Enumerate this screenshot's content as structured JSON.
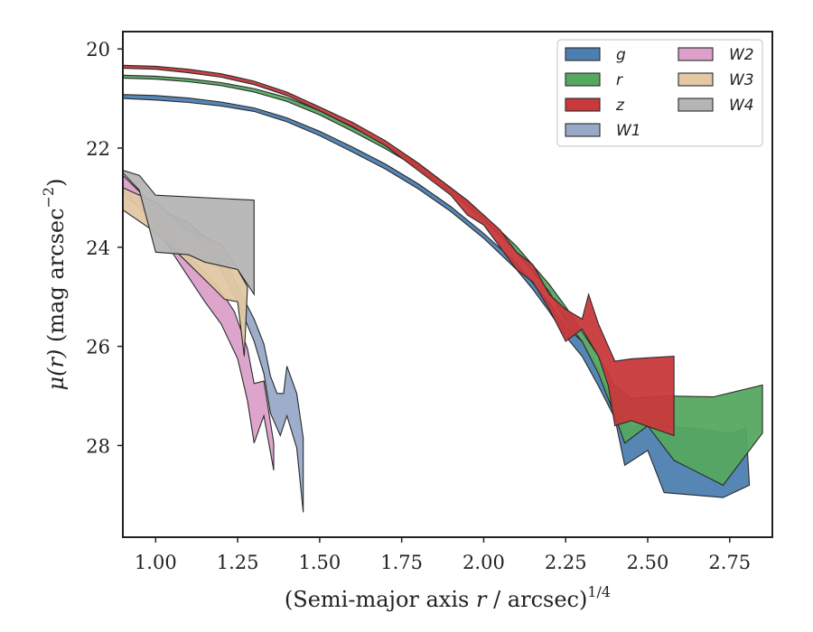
{
  "chart_data": {
    "type": "area",
    "xlabel_parts": {
      "main": "(Semi-major axis ",
      "var": "r",
      "rest": " / arcsec)",
      "sup": "1/4"
    },
    "ylabel_parts": {
      "var": "μ(r)",
      "rest": " (mag arcsec",
      "sup": "−2",
      "close": ")"
    },
    "xlim": [
      0.9,
      2.88
    ],
    "ylim": [
      29.85,
      19.65
    ],
    "xticks": [
      1.0,
      1.25,
      1.5,
      1.75,
      2.0,
      2.25,
      2.5,
      2.75
    ],
    "xtick_labels": [
      "1.00",
      "1.25",
      "1.50",
      "1.75",
      "2.00",
      "2.25",
      "2.50",
      "2.75"
    ],
    "yticks": [
      20,
      22,
      24,
      26,
      28
    ],
    "ytick_labels": [
      "20",
      "22",
      "24",
      "26",
      "28"
    ],
    "legend": {
      "position": "top-right",
      "columns": 2
    },
    "series": [
      {
        "name": "g",
        "color": "#4c7fb0",
        "upper": [
          [
            0.9,
            20.92
          ],
          [
            1.0,
            20.94
          ],
          [
            1.1,
            20.99
          ],
          [
            1.2,
            21.07
          ],
          [
            1.3,
            21.19
          ],
          [
            1.4,
            21.39
          ],
          [
            1.5,
            21.66
          ],
          [
            1.6,
            21.98
          ],
          [
            1.7,
            22.32
          ],
          [
            1.8,
            22.72
          ],
          [
            1.9,
            23.18
          ],
          [
            2.0,
            23.72
          ],
          [
            2.1,
            24.32
          ],
          [
            2.15,
            24.72
          ],
          [
            2.2,
            25.12
          ],
          [
            2.25,
            25.6
          ],
          [
            2.3,
            25.9
          ],
          [
            2.35,
            26.45
          ],
          [
            2.4,
            27.2
          ],
          [
            2.45,
            27.6
          ],
          [
            2.55,
            27.6
          ],
          [
            2.65,
            27.66
          ],
          [
            2.75,
            27.76
          ],
          [
            2.8,
            27.65
          ]
        ],
        "lower": [
          [
            0.9,
            21.0
          ],
          [
            1.0,
            21.03
          ],
          [
            1.1,
            21.08
          ],
          [
            1.2,
            21.15
          ],
          [
            1.3,
            21.26
          ],
          [
            1.4,
            21.47
          ],
          [
            1.5,
            21.75
          ],
          [
            1.6,
            22.08
          ],
          [
            1.7,
            22.42
          ],
          [
            1.8,
            22.82
          ],
          [
            1.9,
            23.28
          ],
          [
            2.0,
            23.82
          ],
          [
            2.1,
            24.45
          ],
          [
            2.15,
            24.85
          ],
          [
            2.2,
            25.3
          ],
          [
            2.25,
            25.8
          ],
          [
            2.3,
            26.2
          ],
          [
            2.35,
            26.8
          ],
          [
            2.4,
            27.45
          ],
          [
            2.43,
            28.4
          ],
          [
            2.5,
            28.1
          ],
          [
            2.55,
            28.95
          ],
          [
            2.73,
            29.05
          ],
          [
            2.81,
            28.8
          ]
        ]
      },
      {
        "name": "r",
        "color": "#55a860",
        "upper": [
          [
            0.9,
            20.53
          ],
          [
            1.0,
            20.55
          ],
          [
            1.1,
            20.6
          ],
          [
            1.2,
            20.68
          ],
          [
            1.3,
            20.8
          ],
          [
            1.4,
            20.98
          ],
          [
            1.5,
            21.25
          ],
          [
            1.6,
            21.58
          ],
          [
            1.7,
            21.93
          ],
          [
            1.8,
            22.32
          ],
          [
            1.9,
            22.8
          ],
          [
            2.0,
            23.35
          ],
          [
            2.1,
            23.98
          ],
          [
            2.2,
            24.75
          ],
          [
            2.25,
            25.2
          ],
          [
            2.3,
            25.7
          ],
          [
            2.35,
            26.2
          ],
          [
            2.4,
            26.8
          ],
          [
            2.45,
            27.05
          ],
          [
            2.55,
            27.0
          ],
          [
            2.7,
            27.02
          ],
          [
            2.85,
            26.78
          ]
        ],
        "lower": [
          [
            0.9,
            20.59
          ],
          [
            1.0,
            20.61
          ],
          [
            1.1,
            20.66
          ],
          [
            1.2,
            20.74
          ],
          [
            1.3,
            20.87
          ],
          [
            1.4,
            21.06
          ],
          [
            1.5,
            21.33
          ],
          [
            1.6,
            21.66
          ],
          [
            1.7,
            22.01
          ],
          [
            1.8,
            22.4
          ],
          [
            1.9,
            22.9
          ],
          [
            2.0,
            23.45
          ],
          [
            2.1,
            24.1
          ],
          [
            2.2,
            24.9
          ],
          [
            2.25,
            25.5
          ],
          [
            2.3,
            25.9
          ],
          [
            2.35,
            26.55
          ],
          [
            2.4,
            27.4
          ],
          [
            2.43,
            27.95
          ],
          [
            2.5,
            27.6
          ],
          [
            2.58,
            28.3
          ],
          [
            2.73,
            28.8
          ],
          [
            2.85,
            27.75
          ]
        ]
      },
      {
        "name": "z",
        "color": "#c8393b",
        "upper": [
          [
            0.9,
            20.33
          ],
          [
            1.0,
            20.35
          ],
          [
            1.1,
            20.41
          ],
          [
            1.2,
            20.5
          ],
          [
            1.3,
            20.65
          ],
          [
            1.4,
            20.87
          ],
          [
            1.5,
            21.17
          ],
          [
            1.6,
            21.48
          ],
          [
            1.7,
            21.85
          ],
          [
            1.8,
            22.3
          ],
          [
            1.9,
            22.8
          ],
          [
            1.95,
            23.05
          ],
          [
            2.0,
            23.35
          ],
          [
            2.05,
            23.65
          ],
          [
            2.1,
            24.1
          ],
          [
            2.15,
            24.35
          ],
          [
            2.2,
            24.95
          ],
          [
            2.25,
            25.25
          ],
          [
            2.3,
            25.45
          ],
          [
            2.32,
            24.95
          ],
          [
            2.35,
            25.55
          ],
          [
            2.4,
            26.3
          ],
          [
            2.45,
            26.25
          ],
          [
            2.58,
            26.2
          ]
        ],
        "lower": [
          [
            0.9,
            20.39
          ],
          [
            1.0,
            20.41
          ],
          [
            1.1,
            20.48
          ],
          [
            1.2,
            20.57
          ],
          [
            1.3,
            20.72
          ],
          [
            1.4,
            20.94
          ],
          [
            1.5,
            21.25
          ],
          [
            1.6,
            21.57
          ],
          [
            1.7,
            21.95
          ],
          [
            1.8,
            22.45
          ],
          [
            1.9,
            22.95
          ],
          [
            1.95,
            23.35
          ],
          [
            2.0,
            23.55
          ],
          [
            2.05,
            24.0
          ],
          [
            2.1,
            24.45
          ],
          [
            2.15,
            24.7
          ],
          [
            2.2,
            25.25
          ],
          [
            2.25,
            25.9
          ],
          [
            2.3,
            25.65
          ],
          [
            2.35,
            26.2
          ],
          [
            2.38,
            26.8
          ],
          [
            2.4,
            27.6
          ],
          [
            2.45,
            27.5
          ],
          [
            2.58,
            27.8
          ]
        ]
      },
      {
        "name": "W1",
        "color": "#98a9c8",
        "upper": [
          [
            0.9,
            22.8
          ],
          [
            1.0,
            23.2
          ],
          [
            1.1,
            23.5
          ],
          [
            1.2,
            24.1
          ],
          [
            1.25,
            24.8
          ],
          [
            1.3,
            25.45
          ],
          [
            1.33,
            25.95
          ],
          [
            1.35,
            26.6
          ],
          [
            1.37,
            26.95
          ],
          [
            1.39,
            26.95
          ],
          [
            1.4,
            26.4
          ],
          [
            1.43,
            26.95
          ],
          [
            1.45,
            27.85
          ]
        ],
        "lower": [
          [
            0.9,
            22.95
          ],
          [
            1.0,
            23.4
          ],
          [
            1.1,
            23.75
          ],
          [
            1.2,
            24.45
          ],
          [
            1.25,
            25.1
          ],
          [
            1.3,
            25.9
          ],
          [
            1.33,
            26.55
          ],
          [
            1.35,
            27.35
          ],
          [
            1.38,
            27.8
          ],
          [
            1.4,
            27.4
          ],
          [
            1.43,
            28.05
          ],
          [
            1.45,
            29.35
          ]
        ]
      },
      {
        "name": "W2",
        "color": "#dca0c9",
        "upper": [
          [
            0.9,
            22.55
          ],
          [
            1.0,
            23.2
          ],
          [
            1.05,
            23.7
          ],
          [
            1.1,
            24.2
          ],
          [
            1.15,
            24.5
          ],
          [
            1.2,
            24.9
          ],
          [
            1.24,
            25.3
          ],
          [
            1.28,
            26.05
          ],
          [
            1.3,
            26.75
          ],
          [
            1.33,
            26.7
          ],
          [
            1.36,
            27.95
          ]
        ],
        "lower": [
          [
            0.9,
            22.85
          ],
          [
            1.0,
            23.55
          ],
          [
            1.05,
            24.1
          ],
          [
            1.1,
            24.6
          ],
          [
            1.15,
            25.1
          ],
          [
            1.2,
            25.55
          ],
          [
            1.25,
            26.25
          ],
          [
            1.28,
            27.1
          ],
          [
            1.3,
            27.95
          ],
          [
            1.33,
            27.4
          ],
          [
            1.36,
            28.5
          ]
        ]
      },
      {
        "name": "W3",
        "color": "#e2c8a4",
        "upper": [
          [
            0.9,
            22.8
          ],
          [
            1.0,
            23.1
          ],
          [
            1.1,
            23.65
          ],
          [
            1.2,
            23.95
          ],
          [
            1.25,
            24.45
          ],
          [
            1.28,
            24.8
          ]
        ],
        "lower": [
          [
            0.9,
            23.25
          ],
          [
            1.0,
            23.7
          ],
          [
            1.08,
            24.2
          ],
          [
            1.18,
            24.85
          ],
          [
            1.21,
            25.05
          ],
          [
            1.25,
            25.1
          ],
          [
            1.27,
            26.2
          ]
        ]
      },
      {
        "name": "W4",
        "color": "#b5b5b5",
        "upper": [
          [
            0.9,
            22.45
          ],
          [
            0.95,
            22.55
          ],
          [
            1.0,
            22.95
          ],
          [
            1.3,
            23.05
          ]
        ],
        "lower": [
          [
            0.9,
            22.5
          ],
          [
            0.95,
            22.85
          ],
          [
            1.0,
            24.1
          ],
          [
            1.1,
            24.15
          ],
          [
            1.15,
            24.3
          ],
          [
            1.25,
            24.45
          ],
          [
            1.3,
            24.95
          ]
        ]
      }
    ]
  }
}
